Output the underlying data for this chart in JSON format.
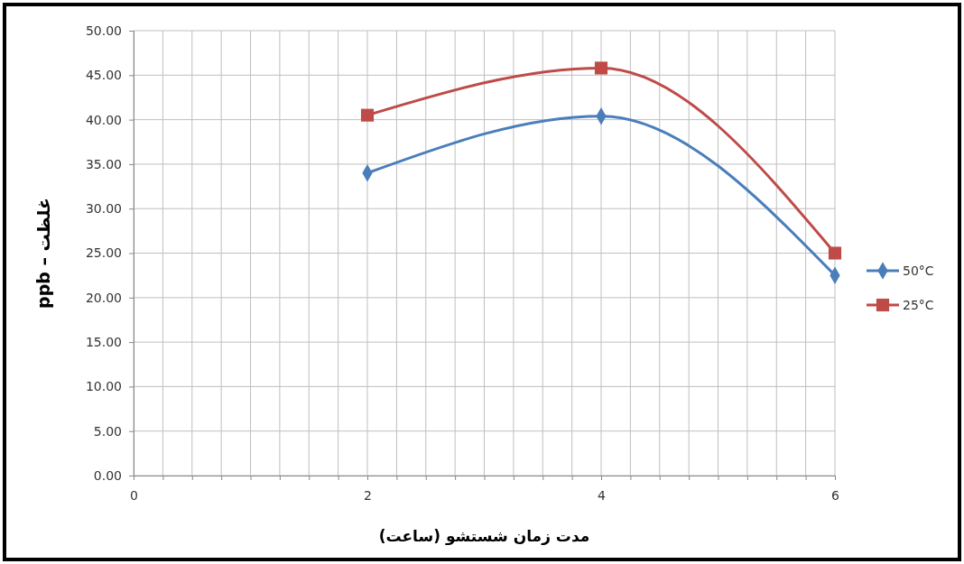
{
  "chart_data": {
    "type": "line",
    "xlabel": "مدت زمان شستشو (ساعت)",
    "ylabel": "ppb – غلظت",
    "x": [
      2,
      4,
      6
    ],
    "series": [
      {
        "name": "50°C",
        "color": "#4a7ebb",
        "values": [
          34.0,
          40.4,
          22.5
        ],
        "marker": "diamond"
      },
      {
        "name": "25°C",
        "color": "#be4b48",
        "values": [
          40.5,
          45.8,
          25.0
        ],
        "marker": "square"
      }
    ],
    "xlim": [
      0,
      6
    ],
    "xticks": [
      0,
      {
        "value": 0.25,
        "label": null
      },
      {
        "value": 0.5,
        "label": null
      },
      {
        "value": 0.75,
        "label": null
      },
      {
        "value": 1,
        "label": null
      },
      {
        "value": 1.25,
        "label": null
      },
      {
        "value": 1.5,
        "label": null
      },
      {
        "value": 1.75,
        "label": null
      },
      2,
      {
        "value": 2.25,
        "label": null
      },
      {
        "value": 2.5,
        "label": null
      },
      {
        "value": 2.75,
        "label": null
      },
      {
        "value": 3,
        "label": null
      },
      {
        "value": 3.25,
        "label": null
      },
      {
        "value": 3.5,
        "label": null
      },
      {
        "value": 3.75,
        "label": null
      },
      4,
      {
        "value": 4.25,
        "label": null
      },
      {
        "value": 4.5,
        "label": null
      },
      {
        "value": 4.75,
        "label": null
      },
      {
        "value": 5,
        "label": null
      },
      {
        "value": 5.25,
        "label": null
      },
      {
        "value": 5.5,
        "label": null
      },
      {
        "value": 5.75,
        "label": null
      },
      6
    ],
    "ylim": [
      0,
      50
    ],
    "yticks": [
      {
        "value": 0,
        "label": "0.00"
      },
      {
        "value": 5,
        "label": "5.00"
      },
      {
        "value": 10,
        "label": "10.00"
      },
      {
        "value": 15,
        "label": "15.00"
      },
      {
        "value": 20,
        "label": "20.00"
      },
      {
        "value": 25,
        "label": "25.00"
      },
      {
        "value": 30,
        "label": "30.00"
      },
      {
        "value": 35,
        "label": "35.00"
      },
      {
        "value": 40,
        "label": "40.00"
      },
      {
        "value": 45,
        "label": "45.00"
      },
      {
        "value": 50,
        "label": "50.00"
      }
    ],
    "grid": true,
    "legend": "right",
    "line_style": "solid"
  }
}
